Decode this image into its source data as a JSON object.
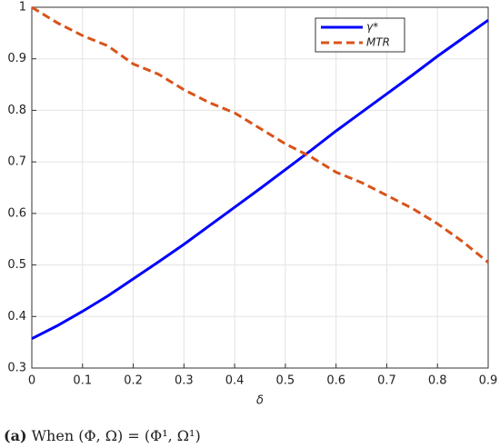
{
  "chart_data": {
    "type": "line",
    "x": [
      0,
      0.05,
      0.1,
      0.15,
      0.2,
      0.25,
      0.3,
      0.35,
      0.4,
      0.45,
      0.5,
      0.55,
      0.6,
      0.65,
      0.7,
      0.75,
      0.8,
      0.85,
      0.9
    ],
    "series": [
      {
        "name": "γ*",
        "color": "#0000ff",
        "dash": false,
        "values": [
          0.357,
          0.382,
          0.41,
          0.44,
          0.473,
          0.506,
          0.54,
          0.576,
          0.612,
          0.648,
          0.685,
          0.722,
          0.76,
          0.796,
          0.832,
          0.868,
          0.905,
          0.94,
          0.975
        ]
      },
      {
        "name": "MTR",
        "color": "#d95319",
        "dash": true,
        "values": [
          1.0,
          0.97,
          0.945,
          0.925,
          0.89,
          0.87,
          0.84,
          0.815,
          0.795,
          0.765,
          0.735,
          0.71,
          0.68,
          0.66,
          0.635,
          0.61,
          0.58,
          0.545,
          0.505
        ]
      }
    ],
    "xlabel": "δ",
    "xlim": [
      0,
      0.9
    ],
    "xticks": [
      0,
      0.1,
      0.2,
      0.3,
      0.4,
      0.5,
      0.6,
      0.7,
      0.8,
      0.9
    ],
    "ylim": [
      0.3,
      1
    ],
    "yticks": [
      0.3,
      0.4,
      0.5,
      0.6,
      0.7,
      0.8,
      0.9,
      1
    ],
    "grid": true,
    "legend": "top-right"
  },
  "caption": {
    "label": "(a)",
    "text": "When (Φ, Ω) = (Φ¹, Ω¹)"
  }
}
